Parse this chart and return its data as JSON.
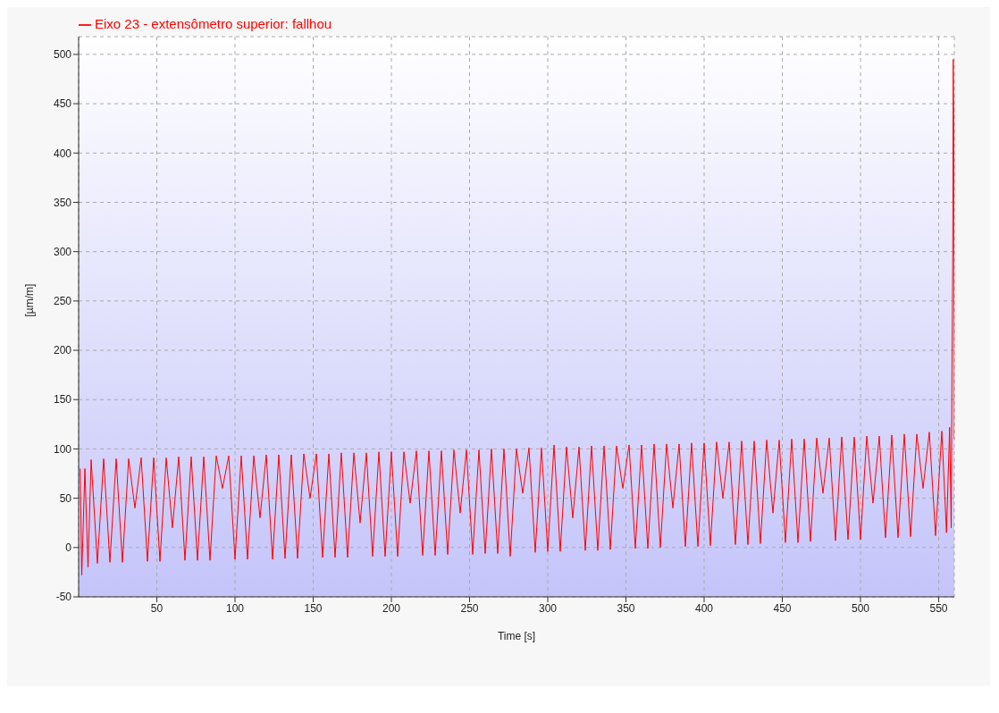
{
  "chart_data": {
    "type": "line",
    "xlabel": "Time [s]",
    "ylabel": "[µm/m]",
    "x": [
      1,
      2,
      4,
      6,
      8,
      12,
      16,
      20,
      24,
      28,
      32,
      36,
      40,
      44,
      48,
      52,
      56,
      60,
      64,
      68,
      72,
      76,
      80,
      84,
      88,
      92,
      96,
      100,
      104,
      108,
      112,
      116,
      120,
      124,
      128,
      132,
      136,
      140,
      144,
      148,
      152,
      156,
      160,
      164,
      168,
      172,
      176,
      180,
      184,
      188,
      192,
      196,
      200,
      204,
      208,
      212,
      216,
      220,
      224,
      228,
      232,
      236,
      240,
      244,
      248,
      252,
      256,
      260,
      264,
      268,
      272,
      276,
      280,
      284,
      288,
      292,
      296,
      300,
      304,
      308,
      312,
      316,
      320,
      324,
      328,
      332,
      336,
      340,
      344,
      348,
      352,
      356,
      360,
      364,
      368,
      372,
      376,
      380,
      384,
      388,
      392,
      396,
      400,
      404,
      408,
      412,
      416,
      420,
      424,
      428,
      432,
      436,
      440,
      444,
      448,
      452,
      456,
      460,
      464,
      468,
      472,
      476,
      480,
      484,
      488,
      492,
      496,
      500,
      504,
      508,
      512,
      516,
      520,
      524,
      528,
      532,
      536,
      540,
      544,
      548,
      552,
      555,
      557,
      558,
      558.5,
      559,
      559.3,
      559.6,
      559.8,
      560
    ],
    "series": [
      {
        "name": "Eixo 23 - extensômetro superior: fallhou",
        "color": "#ff0000",
        "values": [
          80,
          -28,
          80,
          -20,
          89,
          -16,
          90,
          -15,
          90,
          -15,
          90,
          40,
          91,
          -14,
          91,
          -14,
          91,
          20,
          92,
          -13,
          92,
          -13,
          92,
          -13,
          93,
          60,
          93,
          -12,
          93,
          -12,
          93,
          30,
          94,
          -12,
          94,
          -11,
          94,
          -11,
          95,
          50,
          95,
          -10,
          95,
          -10,
          96,
          -10,
          96,
          25,
          96,
          -9,
          97,
          -9,
          97,
          -9,
          97,
          45,
          98,
          -8,
          98,
          -8,
          98,
          -7,
          99,
          35,
          99,
          -7,
          99,
          -6,
          100,
          -6,
          100,
          -9,
          100,
          55,
          101,
          -5,
          101,
          -4,
          104,
          -4,
          102,
          30,
          102,
          -3,
          103,
          -3,
          103,
          -2,
          103,
          60,
          104,
          -1,
          104,
          -1,
          105,
          0,
          105,
          40,
          105,
          1,
          106,
          1,
          106,
          2,
          107,
          50,
          107,
          3,
          108,
          3,
          108,
          4,
          109,
          35,
          109,
          5,
          110,
          5,
          110,
          6,
          111,
          55,
          111,
          7,
          112,
          8,
          112,
          8,
          113,
          45,
          113,
          10,
          114,
          10,
          115,
          11,
          115,
          60,
          117,
          12,
          118,
          15,
          122,
          20,
          180,
          300,
          495,
          440,
          350,
          110
        ]
      }
    ],
    "xlim": [
      0,
      560
    ],
    "xticks": [
      50,
      100,
      150,
      200,
      250,
      300,
      350,
      400,
      450,
      500,
      550
    ],
    "ylim": [
      -50,
      518
    ],
    "yticks": [
      -50,
      0,
      50,
      100,
      150,
      200,
      250,
      300,
      350,
      400,
      450,
      500
    ],
    "grid": true,
    "legend": "top left",
    "marker": "none"
  }
}
